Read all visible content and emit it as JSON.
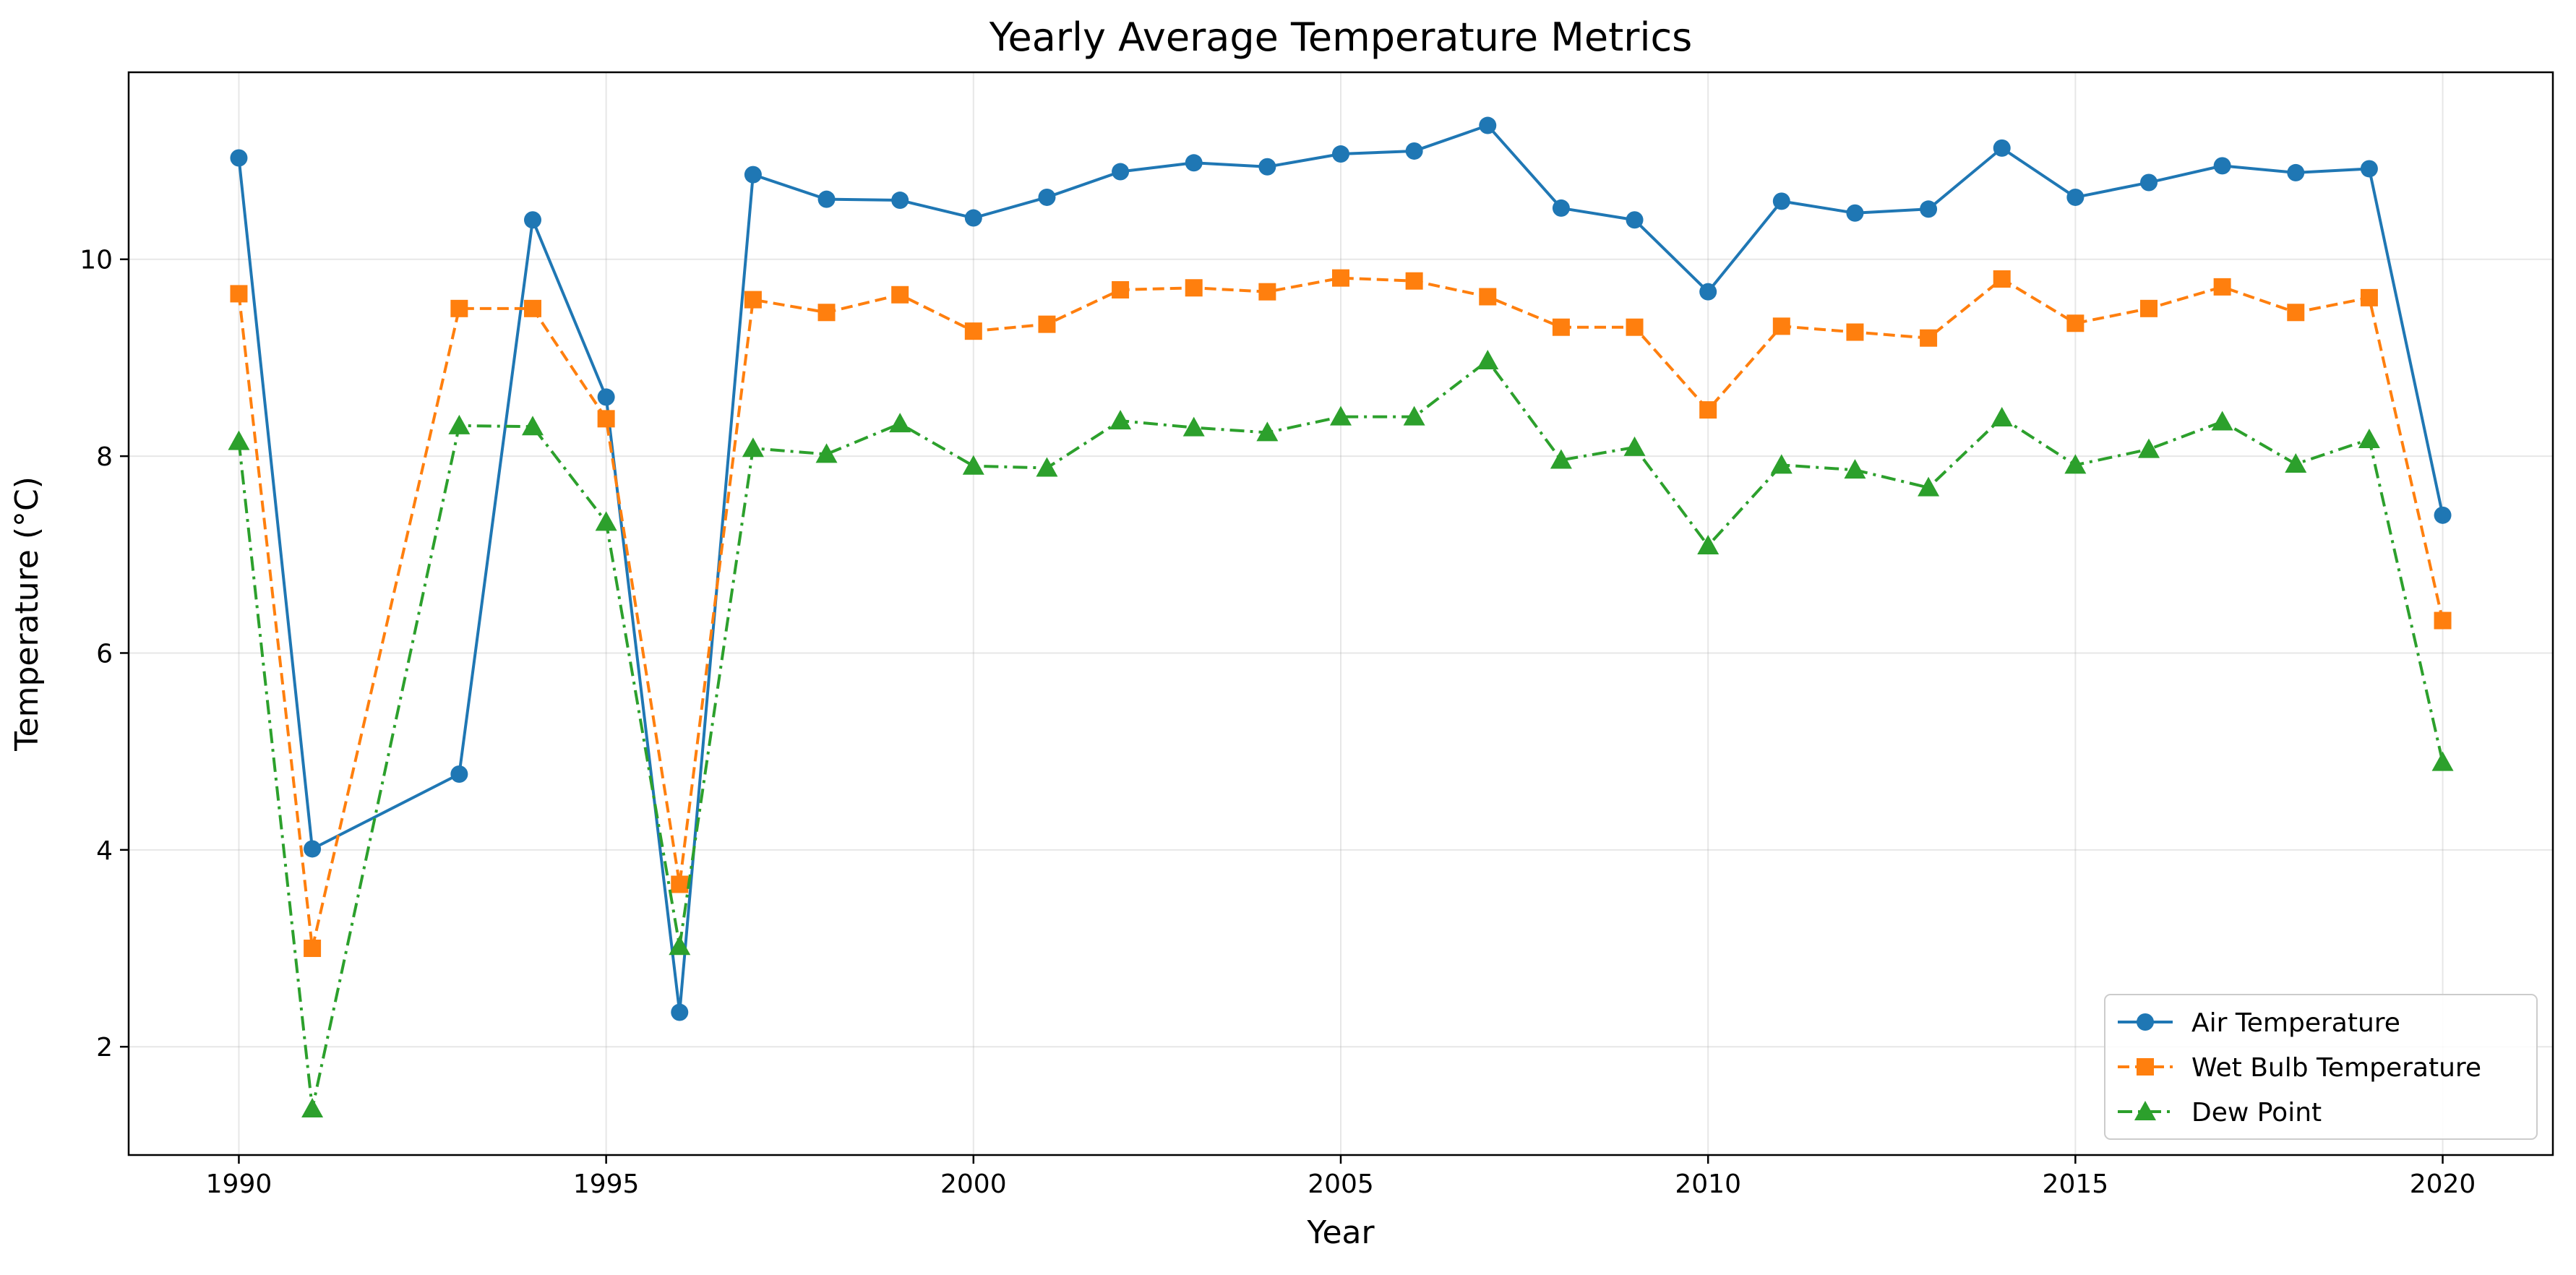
{
  "chart_data": {
    "type": "line",
    "title": "Yearly Average Temperature Metrics",
    "xlabel": "Year",
    "ylabel": "Temperature (°C)",
    "xlim": [
      1988.5,
      2021.5
    ],
    "ylim": [
      0.9,
      11.9
    ],
    "xticks": [
      1990,
      1995,
      2000,
      2005,
      2010,
      2015,
      2020
    ],
    "yticks": [
      2,
      4,
      6,
      8,
      10
    ],
    "grid": true,
    "legend_position": "bottom-right",
    "x": [
      1990,
      1991,
      1993,
      1994,
      1995,
      1996,
      1997,
      1998,
      1999,
      2000,
      2001,
      2002,
      2003,
      2004,
      2005,
      2006,
      2007,
      2008,
      2009,
      2010,
      2011,
      2012,
      2013,
      2014,
      2015,
      2016,
      2017,
      2018,
      2019,
      2020
    ],
    "series": [
      {
        "name": "Air Temperature",
        "color": "#1f77b4",
        "marker": "circle",
        "linestyle": "solid",
        "values": [
          11.03,
          4.01,
          4.77,
          10.4,
          8.6,
          2.35,
          10.86,
          10.61,
          10.6,
          10.42,
          10.63,
          10.89,
          10.98,
          10.94,
          11.07,
          11.1,
          11.36,
          10.52,
          10.4,
          9.67,
          10.59,
          10.47,
          10.51,
          11.13,
          10.63,
          10.78,
          10.95,
          10.88,
          10.92,
          7.4
        ]
      },
      {
        "name": "Wet Bulb Temperature",
        "color": "#ff7f0e",
        "marker": "square",
        "linestyle": "dashed",
        "values": [
          9.65,
          3.0,
          9.5,
          9.5,
          8.38,
          3.65,
          9.59,
          9.46,
          9.64,
          9.27,
          9.34,
          9.69,
          9.71,
          9.67,
          9.81,
          9.78,
          9.62,
          9.31,
          9.31,
          8.47,
          9.32,
          9.26,
          9.2,
          9.8,
          9.35,
          9.5,
          9.72,
          9.46,
          9.61,
          6.33
        ]
      },
      {
        "name": "Dew Point",
        "color": "#2ca02c",
        "marker": "triangle",
        "linestyle": "dashdot",
        "values": [
          8.15,
          1.37,
          8.31,
          8.3,
          7.33,
          3.02,
          8.08,
          8.02,
          8.33,
          7.9,
          7.88,
          8.36,
          8.29,
          8.24,
          8.4,
          8.4,
          8.97,
          7.96,
          8.09,
          7.09,
          7.91,
          7.86,
          7.68,
          8.39,
          7.91,
          8.07,
          8.35,
          7.92,
          8.17,
          4.89
        ]
      }
    ]
  }
}
